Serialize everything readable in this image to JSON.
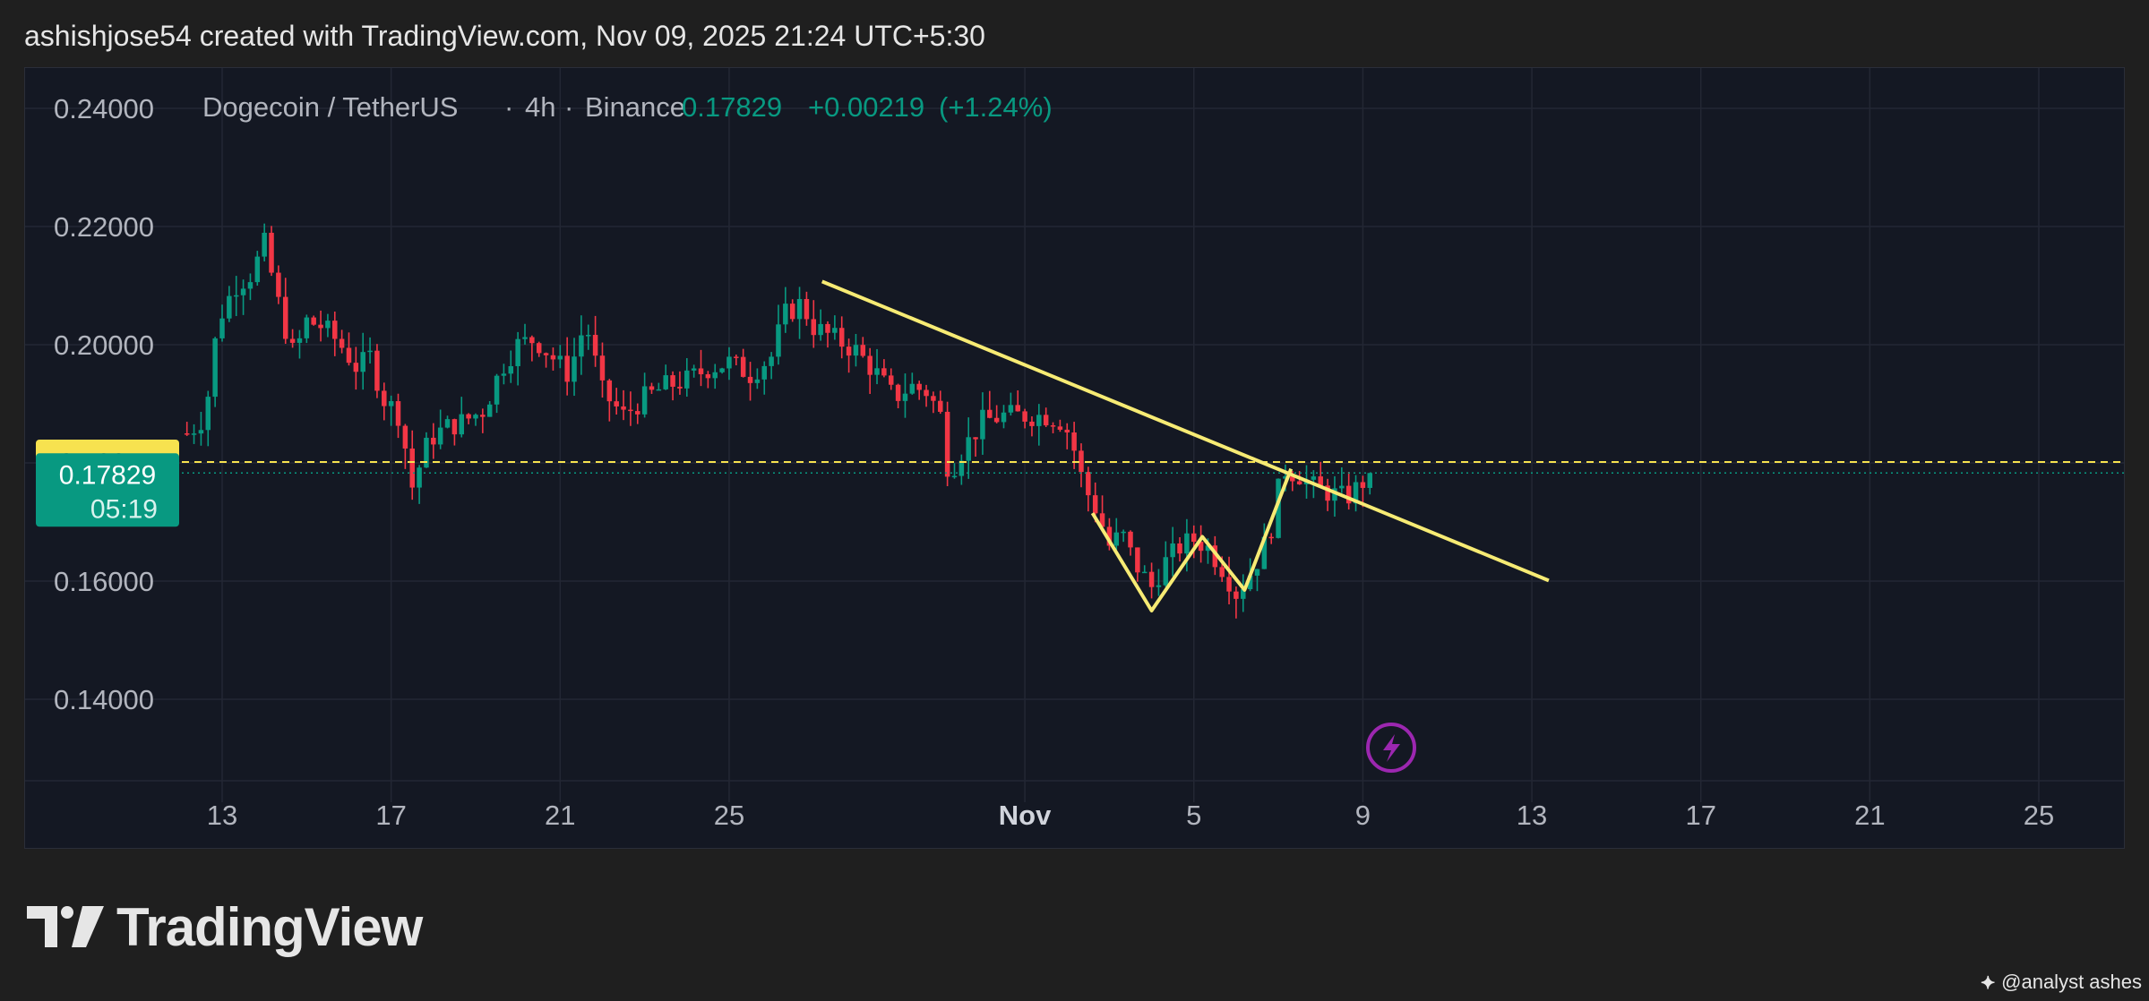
{
  "header": {
    "attribution": "ashishjose54 created with TradingView.com, Nov 09, 2025 21:24 UTC+5:30"
  },
  "logo": {
    "text": "TradingView"
  },
  "watermark": {
    "text": "@analyst ashes"
  },
  "colors": {
    "up": "#089981",
    "down": "#f23645",
    "trend": "#f7eb74",
    "yellow_label": "#f7e24f",
    "price_label": "#089981",
    "grid": "#232734",
    "text": "#b2b5be",
    "bg": "#141823",
    "lightning": "#9c27b0"
  },
  "chart_data": {
    "type": "candlestick",
    "symbol": "Dogecoin / TetherUS",
    "interval": "4h",
    "exchange": "Binance",
    "last_price": "0.17829",
    "change": "+0.00219",
    "change_pct": "(+1.24%)",
    "countdown": "05:19",
    "marked_level": "0.18015",
    "marked_level_value": 0.18015,
    "last_price_value": 0.17829,
    "ylim": [
      0.128,
      0.248
    ],
    "y_ticks": [
      0.14,
      0.16,
      0.2,
      0.22,
      0.24
    ],
    "y_tick_labels": [
      "0.14000",
      "0.16000",
      "0.20000",
      "0.22000",
      "0.24000"
    ],
    "x_ticks": [
      {
        "label": "13",
        "day": 13,
        "bold": false
      },
      {
        "label": "17",
        "day": 17,
        "bold": false
      },
      {
        "label": "21",
        "day": 21,
        "bold": false
      },
      {
        "label": "25",
        "day": 25,
        "bold": false
      },
      {
        "label": "Nov",
        "day": 32,
        "bold": true
      },
      {
        "label": "5",
        "day": 36,
        "bold": false
      },
      {
        "label": "9",
        "day": 40,
        "bold": false
      },
      {
        "label": "13",
        "day": 44,
        "bold": false
      },
      {
        "label": "17",
        "day": 48,
        "bold": false
      },
      {
        "label": "21",
        "day": 52,
        "bold": false
      },
      {
        "label": "25",
        "day": 56,
        "bold": false
      }
    ],
    "xlim": [
      9.3,
      58.0
    ],
    "x_unit": "days since Oct 1, 2025",
    "close_path": [
      [
        12.2,
        0.185
      ],
      [
        12.6,
        0.188
      ],
      [
        12.9,
        0.204
      ],
      [
        13.3,
        0.21
      ],
      [
        13.7,
        0.212
      ],
      [
        14.0,
        0.217
      ],
      [
        14.4,
        0.205
      ],
      [
        14.7,
        0.198
      ],
      [
        15.0,
        0.204
      ],
      [
        15.4,
        0.203
      ],
      [
        15.8,
        0.2
      ],
      [
        16.2,
        0.196
      ],
      [
        16.5,
        0.198
      ],
      [
        16.8,
        0.191
      ],
      [
        17.2,
        0.188
      ],
      [
        17.5,
        0.176
      ],
      [
        17.9,
        0.184
      ],
      [
        18.3,
        0.186
      ],
      [
        18.7,
        0.187
      ],
      [
        19.2,
        0.189
      ],
      [
        19.6,
        0.196
      ],
      [
        20.0,
        0.2
      ],
      [
        20.4,
        0.201
      ],
      [
        20.8,
        0.198
      ],
      [
        21.2,
        0.195
      ],
      [
        21.6,
        0.204
      ],
      [
        22.0,
        0.192
      ],
      [
        22.5,
        0.188
      ],
      [
        23.0,
        0.191
      ],
      [
        23.5,
        0.193
      ],
      [
        24.0,
        0.194
      ],
      [
        24.5,
        0.196
      ],
      [
        25.0,
        0.197
      ],
      [
        25.5,
        0.195
      ],
      [
        26.0,
        0.198
      ],
      [
        26.3,
        0.205
      ],
      [
        26.7,
        0.207
      ],
      [
        27.0,
        0.203
      ],
      [
        27.5,
        0.201
      ],
      [
        28.0,
        0.199
      ],
      [
        28.5,
        0.195
      ],
      [
        28.9,
        0.191
      ],
      [
        29.3,
        0.193
      ],
      [
        29.7,
        0.192
      ],
      [
        30.0,
        0.188
      ],
      [
        30.2,
        0.178
      ],
      [
        30.5,
        0.182
      ],
      [
        31.0,
        0.187
      ],
      [
        31.5,
        0.188
      ],
      [
        32.0,
        0.188
      ],
      [
        32.5,
        0.188
      ],
      [
        32.9,
        0.187
      ],
      [
        33.1,
        0.184
      ],
      [
        33.4,
        0.176
      ],
      [
        33.7,
        0.172
      ],
      [
        34.0,
        0.166
      ],
      [
        34.3,
        0.168
      ],
      [
        34.6,
        0.163
      ],
      [
        35.0,
        0.159
      ],
      [
        35.3,
        0.163
      ],
      [
        35.7,
        0.166
      ],
      [
        36.0,
        0.167
      ],
      [
        36.3,
        0.166
      ],
      [
        36.7,
        0.162
      ],
      [
        37.0,
        0.158
      ],
      [
        37.4,
        0.162
      ],
      [
        37.8,
        0.168
      ],
      [
        38.1,
        0.179
      ],
      [
        38.5,
        0.178
      ],
      [
        38.8,
        0.176
      ],
      [
        39.2,
        0.175
      ],
      [
        39.6,
        0.174
      ],
      [
        39.9,
        0.176
      ],
      [
        40.2,
        0.1783
      ]
    ],
    "annotations": {
      "trendline": {
        "x1": 27.2,
        "y1": 0.2107,
        "x2": 44.4,
        "y2": 0.1601
      },
      "zigzag": [
        [
          33.6,
          0.1715
        ],
        [
          35.0,
          0.155
        ],
        [
          36.2,
          0.1675
        ],
        [
          37.2,
          0.1585
        ],
        [
          38.3,
          0.179
        ]
      ]
    }
  }
}
